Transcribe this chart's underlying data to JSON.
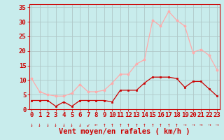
{
  "hours": [
    0,
    1,
    2,
    3,
    4,
    5,
    6,
    7,
    8,
    9,
    10,
    11,
    12,
    13,
    14,
    15,
    16,
    17,
    18,
    19,
    20,
    21,
    22,
    23
  ],
  "wind_avg": [
    3,
    3,
    3,
    1,
    2.5,
    1,
    3,
    3,
    3,
    3,
    2.5,
    6.5,
    6.5,
    6.5,
    9,
    11,
    11,
    11,
    10.5,
    7.5,
    9.5,
    9.5,
    7,
    4.5
  ],
  "wind_gust": [
    10.5,
    6,
    5,
    4.5,
    4.5,
    5.5,
    8.5,
    6,
    6,
    6.5,
    9,
    12,
    12,
    15.5,
    17,
    30.5,
    28.5,
    33.5,
    30.5,
    28.5,
    19.5,
    20.5,
    18.5,
    13.5
  ],
  "avg_color": "#cc0000",
  "gust_color": "#ffaaaa",
  "background_color": "#c8ecec",
  "grid_color": "#b0c8c8",
  "xlabel": "Vent moyen/en rafales ( km/h )",
  "ylim": [
    0,
    36
  ],
  "yticks": [
    0,
    5,
    10,
    15,
    20,
    25,
    30,
    35
  ],
  "tick_fontsize": 6.5,
  "label_fontsize": 7.5,
  "arrow_chars": [
    "↓",
    "↓",
    "↓",
    "↓",
    "↓",
    "↓",
    "↓",
    "↙",
    "←",
    "↑",
    "↑",
    "↑",
    "↑",
    "↑",
    "↑",
    "↑",
    "↑",
    "↑",
    "↑",
    "⇢",
    "⇢",
    "→",
    "⇢",
    "⇢"
  ]
}
